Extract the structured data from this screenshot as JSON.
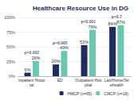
{
  "chart_data": {
    "type": "bar",
    "title": "Healthcare Resource Use in DG",
    "categories": [
      "Inpatient Hospital",
      "ED",
      "Outpatient Hospital",
      "Lab/Home/Telehealth"
    ],
    "series": [
      {
        "name": "HMCP (n=65)",
        "color": "#1f2d5c",
        "values": [
          6,
          20,
          53,
          84
        ],
        "value_labels": [
          "6%",
          "20%",
          "53%",
          "84%"
        ]
      },
      {
        "name": "CMCP (n=18)",
        "color": "#6cc7b2",
        "values": [
          26,
          43,
          79,
          87
        ],
        "value_labels": [
          "26%",
          "43%",
          "79%",
          "87%"
        ]
      }
    ],
    "annotations": [
      "p=0.002",
      "p=0.005",
      "p<0.001",
      "p=0.7"
    ],
    "ylim": [
      0,
      100
    ],
    "yticks": [
      {
        "value": 0,
        "label": "0%"
      },
      {
        "value": 25,
        "label": "25%"
      },
      {
        "value": 50,
        "label": "50%"
      },
      {
        "value": 75,
        "label": "75%"
      },
      {
        "value": 100,
        "label": "100%"
      }
    ],
    "grid": true,
    "legend": "bottom-right",
    "data_labels": true
  }
}
